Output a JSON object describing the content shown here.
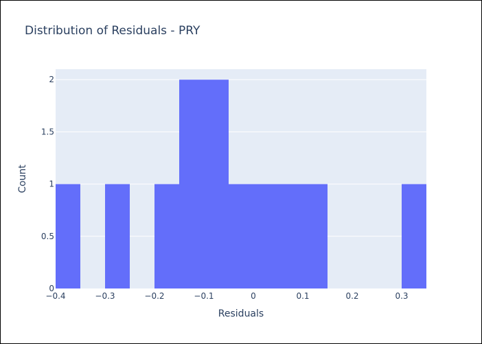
{
  "chart_data": {
    "type": "bar",
    "title": "Distribution of Residuals - PRY",
    "xlabel": "Residuals",
    "ylabel": "Count",
    "bin_width": 0.05,
    "bins": [
      {
        "start": -0.4,
        "end": -0.35,
        "count": 1
      },
      {
        "start": -0.35,
        "end": -0.3,
        "count": 0
      },
      {
        "start": -0.3,
        "end": -0.25,
        "count": 1
      },
      {
        "start": -0.25,
        "end": -0.2,
        "count": 0
      },
      {
        "start": -0.2,
        "end": -0.15,
        "count": 1
      },
      {
        "start": -0.15,
        "end": -0.1,
        "count": 2
      },
      {
        "start": -0.1,
        "end": -0.05,
        "count": 2
      },
      {
        "start": -0.05,
        "end": 0.0,
        "count": 1
      },
      {
        "start": 0.0,
        "end": 0.05,
        "count": 1
      },
      {
        "start": 0.05,
        "end": 0.1,
        "count": 1
      },
      {
        "start": 0.1,
        "end": 0.15,
        "count": 1
      },
      {
        "start": 0.15,
        "end": 0.2,
        "count": 0
      },
      {
        "start": 0.2,
        "end": 0.25,
        "count": 0
      },
      {
        "start": 0.25,
        "end": 0.3,
        "count": 0
      },
      {
        "start": 0.3,
        "end": 0.35,
        "count": 1
      }
    ],
    "xlim": [
      -0.4,
      0.35
    ],
    "ylim": [
      0,
      2.1
    ],
    "x_ticks": [
      {
        "value": -0.4,
        "label": "−0.4"
      },
      {
        "value": -0.3,
        "label": "−0.3"
      },
      {
        "value": -0.2,
        "label": "−0.2"
      },
      {
        "value": -0.1,
        "label": "−0.1"
      },
      {
        "value": 0.0,
        "label": "0"
      },
      {
        "value": 0.1,
        "label": "0.1"
      },
      {
        "value": 0.2,
        "label": "0.2"
      },
      {
        "value": 0.3,
        "label": "0.3"
      }
    ],
    "y_ticks": [
      {
        "value": 0,
        "label": "0"
      },
      {
        "value": 0.5,
        "label": "0.5"
      },
      {
        "value": 1,
        "label": "1"
      },
      {
        "value": 1.5,
        "label": "1.5"
      },
      {
        "value": 2,
        "label": "2"
      }
    ],
    "grid": true,
    "colors": {
      "bar": "#636efa",
      "plot_background": "#e5ecf6",
      "grid": "#ffffff",
      "text": "#2a3f5f"
    }
  }
}
